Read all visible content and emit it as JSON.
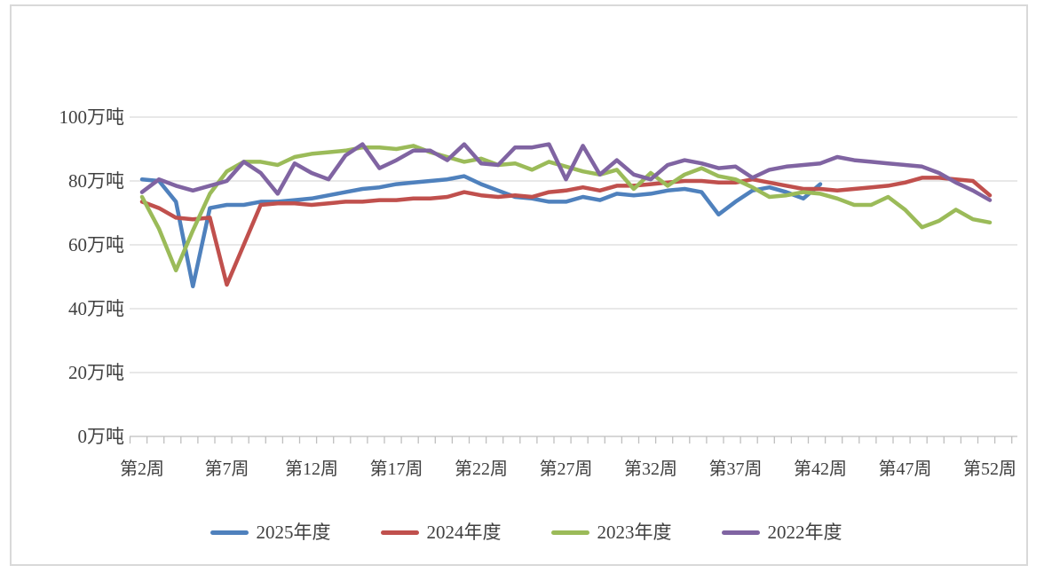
{
  "chart_data": {
    "type": "line",
    "x_axis": {
      "unit": "周",
      "week_start": 2,
      "week_end": 52,
      "tick_weeks": [
        2,
        7,
        12,
        17,
        22,
        27,
        32,
        37,
        42,
        47,
        52
      ],
      "tick_labels": [
        "第2周",
        "第7周",
        "第12周",
        "第17周",
        "第22周",
        "第27周",
        "第32周",
        "第37周",
        "第42周",
        "第47周",
        "第52周"
      ]
    },
    "y_axis": {
      "unit": "万吨",
      "min": 0,
      "max": 100,
      "step": 20,
      "tick_values": [
        0,
        20,
        40,
        60,
        80,
        100
      ],
      "tick_labels": [
        "0万吨",
        "20万吨",
        "40万吨",
        "60万吨",
        "80万吨",
        "100万吨"
      ]
    },
    "grid": "horizontal",
    "legend_position": "bottom",
    "series": [
      {
        "name": "2025年度",
        "color": "#4F81BD",
        "start_week": 2,
        "values": [
          80.5,
          80,
          73.5,
          47,
          71.5,
          72.5,
          72.5,
          73.5,
          73.5,
          74,
          74.5,
          75.5,
          76.5,
          77.5,
          78,
          79,
          79.5,
          80,
          80.5,
          81.5,
          79,
          77,
          75,
          74.5,
          73.5,
          73.5,
          75,
          74,
          76,
          75.5,
          76,
          77,
          77.5,
          76.5,
          69.5,
          73.5,
          77,
          78,
          76.5,
          74.5,
          79
        ]
      },
      {
        "name": "2024年度",
        "color": "#C0504D",
        "start_week": 2,
        "values": [
          73.5,
          71.5,
          68.5,
          68,
          68.5,
          47.5,
          60,
          72.5,
          73,
          73,
          72.5,
          73,
          73.5,
          73.5,
          74,
          74,
          74.5,
          74.5,
          75,
          76.5,
          75.5,
          75,
          75.5,
          75,
          76.5,
          77,
          78,
          77,
          78.5,
          78.5,
          79,
          79.5,
          80,
          80,
          79.5,
          79.5,
          80.5,
          79.5,
          78.5,
          77.5,
          77.5,
          77,
          77.5,
          78,
          78.5,
          79.5,
          81,
          81,
          80.5,
          80,
          75.5
        ]
      },
      {
        "name": "2023年度",
        "color": "#9BBB59",
        "start_week": 2,
        "values": [
          75,
          65,
          52,
          64.5,
          76,
          83,
          86,
          86,
          85,
          87.5,
          88.5,
          89,
          89.5,
          90.5,
          90.5,
          90,
          91,
          89,
          87.5,
          86,
          87,
          85,
          85.5,
          83.5,
          86,
          84.5,
          83,
          82,
          83.5,
          77.5,
          82.5,
          78.5,
          82,
          84,
          81.5,
          80.5,
          78,
          75,
          75.5,
          76.5,
          76,
          74.5,
          72.5,
          72.5,
          75,
          71,
          65.5,
          67.5,
          71,
          68,
          67
        ]
      },
      {
        "name": "2022年度",
        "color": "#8064A2",
        "start_week": 2,
        "values": [
          76.5,
          80.5,
          78.5,
          77,
          78.5,
          80,
          86,
          82.5,
          76,
          85.5,
          82.5,
          80.5,
          88,
          91.5,
          84,
          86.5,
          89.5,
          89.5,
          86.5,
          91.5,
          85.5,
          85,
          90.5,
          90.5,
          91.5,
          80.5,
          91,
          82,
          86.5,
          82,
          80.5,
          85,
          86.5,
          85.5,
          84,
          84.5,
          81,
          83.5,
          84.5,
          85,
          85.5,
          87.5,
          86.5,
          86,
          85.5,
          85,
          84.5,
          82.5,
          79.5,
          77,
          74
        ]
      }
    ],
    "appearance": {
      "grid_color": "#d9d9d9",
      "axis_color": "#bfbfbf",
      "frame_color": "#d9d9d9",
      "text_color": "#404040",
      "background": "#ffffff"
    }
  }
}
